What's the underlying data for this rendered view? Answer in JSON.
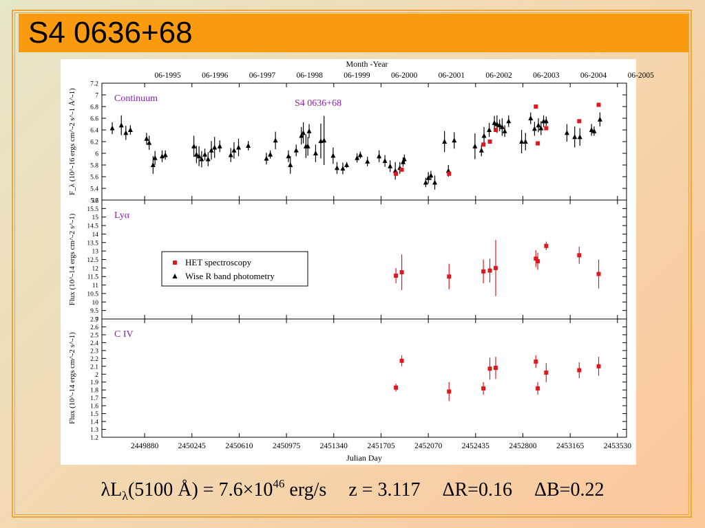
{
  "title": "S4 0636+68",
  "caption": {
    "lum_l": "λL",
    "lum_sub": "λ",
    "lum_mid": "(5100 Å) = 7.6×10",
    "lum_exp": "46",
    "lum_unit": " erg/s",
    "z": "z = 3.117",
    "dr": "ΔR=0.16",
    "db": "ΔB=0.22"
  },
  "chart_data": {
    "type": "scatter",
    "top_axis_title": "Month -Year",
    "top_ticks": [
      "06-1995",
      "06-1996",
      "06-1997",
      "06-1998",
      "06-1999",
      "06-2000",
      "06-2001",
      "06-2002",
      "06-2003",
      "06-2004",
      "06-2005"
    ],
    "xlabel": "Julian Day",
    "x_ticks": [
      "2449880",
      "2450245",
      "2450610",
      "2450975",
      "2451340",
      "2451705",
      "2452070",
      "2452435",
      "2452800",
      "2453165",
      "2453530"
    ],
    "xlim": [
      2449550,
      2453600
    ],
    "colors": {
      "het": "#e0181e",
      "wise": "#000000",
      "label": "#8b1fb4"
    },
    "legend": {
      "placement": "inside panel 2, left",
      "entries": [
        {
          "name": "HET spectroscopy",
          "series": "het",
          "marker": "square"
        },
        {
          "name": "Wise R band photometry",
          "series": "wise",
          "marker": "triangle"
        }
      ]
    },
    "panels": [
      {
        "label": "Continuum",
        "object": "S4 0636+68",
        "ylabel": "F_λ (10^-16 ergs cm^-2 s^-1 Å^-1)",
        "ylim": [
          5.2,
          7.2
        ],
        "y_ticks": [
          "5.2",
          "5.4",
          "5.6",
          "5.8",
          "6",
          "6.2",
          "6.4",
          "6.6",
          "6.8",
          "7",
          "7.2"
        ],
        "series": [
          {
            "name": "Wise R band photometry",
            "marker": "triangle",
            "points": [
              {
                "x": 2449630,
                "y": 6.43,
                "e": 0.1
              },
              {
                "x": 2449700,
                "y": 6.48,
                "e": 0.17
              },
              {
                "x": 2449735,
                "y": 6.35,
                "e": 0.12
              },
              {
                "x": 2449770,
                "y": 6.4,
                "e": 0.08
              },
              {
                "x": 2449895,
                "y": 6.25,
                "e": 0.1
              },
              {
                "x": 2449915,
                "y": 6.18,
                "e": 0.12
              },
              {
                "x": 2449945,
                "y": 5.8,
                "e": 0.15
              },
              {
                "x": 2449960,
                "y": 5.92,
                "e": 0.12
              },
              {
                "x": 2450015,
                "y": 5.95,
                "e": 0.1
              },
              {
                "x": 2450040,
                "y": 5.97,
                "e": 0.08
              },
              {
                "x": 2450260,
                "y": 6.12,
                "e": 0.18
              },
              {
                "x": 2450280,
                "y": 5.98,
                "e": 0.15
              },
              {
                "x": 2450300,
                "y": 5.95,
                "e": 0.17
              },
              {
                "x": 2450320,
                "y": 5.9,
                "e": 0.14
              },
              {
                "x": 2450345,
                "y": 5.98,
                "e": 0.1
              },
              {
                "x": 2450370,
                "y": 5.9,
                "e": 0.12
              },
              {
                "x": 2450395,
                "y": 6.05,
                "e": 0.16
              },
              {
                "x": 2450420,
                "y": 6.1,
                "e": 0.18
              },
              {
                "x": 2450460,
                "y": 6.12,
                "e": 0.1
              },
              {
                "x": 2450545,
                "y": 5.97,
                "e": 0.12
              },
              {
                "x": 2450570,
                "y": 6.05,
                "e": 0.14
              },
              {
                "x": 2450605,
                "y": 6.1,
                "e": 0.15
              },
              {
                "x": 2450680,
                "y": 6.13,
                "e": 0.08
              },
              {
                "x": 2450820,
                "y": 5.91,
                "e": 0.1
              },
              {
                "x": 2450850,
                "y": 5.98,
                "e": 0.07
              },
              {
                "x": 2450890,
                "y": 6.22,
                "e": 0.15
              },
              {
                "x": 2450990,
                "y": 5.95,
                "e": 0.1
              },
              {
                "x": 2451005,
                "y": 5.8,
                "e": 0.15
              },
              {
                "x": 2451050,
                "y": 6.05,
                "e": 0.1
              },
              {
                "x": 2451090,
                "y": 6.3,
                "e": 0.15
              },
              {
                "x": 2451105,
                "y": 6.35,
                "e": 0.18
              },
              {
                "x": 2451125,
                "y": 6.12,
                "e": 0.2
              },
              {
                "x": 2451140,
                "y": 6.12,
                "e": 0.16
              },
              {
                "x": 2451150,
                "y": 6.38,
                "e": 0.12
              },
              {
                "x": 2451200,
                "y": 6.0,
                "e": 0.15
              },
              {
                "x": 2451240,
                "y": 6.21,
                "e": 0.3
              },
              {
                "x": 2451265,
                "y": 6.22,
                "e": 0.42
              },
              {
                "x": 2451335,
                "y": 5.96,
                "e": 0.14
              },
              {
                "x": 2451365,
                "y": 5.75,
                "e": 0.1
              },
              {
                "x": 2451410,
                "y": 5.74,
                "e": 0.1
              },
              {
                "x": 2451440,
                "y": 5.8,
                "e": 0.05
              },
              {
                "x": 2451520,
                "y": 5.92,
                "e": 0.08
              },
              {
                "x": 2451545,
                "y": 5.97,
                "e": 0.06
              },
              {
                "x": 2451600,
                "y": 5.86,
                "e": 0.08
              },
              {
                "x": 2451690,
                "y": 5.95,
                "e": 0.1
              },
              {
                "x": 2451735,
                "y": 5.87,
                "e": 0.1
              },
              {
                "x": 2451775,
                "y": 5.78,
                "e": 0.1
              },
              {
                "x": 2451815,
                "y": 5.7,
                "e": 0.15
              },
              {
                "x": 2451850,
                "y": 5.75,
                "e": 0.1
              },
              {
                "x": 2451875,
                "y": 5.85,
                "e": 0.08
              },
              {
                "x": 2451885,
                "y": 5.9,
                "e": 0.08
              },
              {
                "x": 2452050,
                "y": 5.5,
                "e": 0.08
              },
              {
                "x": 2452070,
                "y": 5.58,
                "e": 0.1
              },
              {
                "x": 2452090,
                "y": 5.62,
                "e": 0.08
              },
              {
                "x": 2452120,
                "y": 5.5,
                "e": 0.12
              },
              {
                "x": 2452195,
                "y": 6.2,
                "e": 0.18
              },
              {
                "x": 2452225,
                "y": 5.7,
                "e": 0.1
              },
              {
                "x": 2452270,
                "y": 6.22,
                "e": 0.14
              },
              {
                "x": 2452430,
                "y": 6.12,
                "e": 0.22
              },
              {
                "x": 2452480,
                "y": 6.05,
                "e": 0.1
              },
              {
                "x": 2452500,
                "y": 6.3,
                "e": 0.15
              },
              {
                "x": 2452540,
                "y": 6.4,
                "e": 0.12
              },
              {
                "x": 2452580,
                "y": 6.52,
                "e": 0.12
              },
              {
                "x": 2452600,
                "y": 6.5,
                "e": 0.15
              },
              {
                "x": 2452620,
                "y": 6.48,
                "e": 0.1
              },
              {
                "x": 2452640,
                "y": 6.45,
                "e": 0.15
              },
              {
                "x": 2452660,
                "y": 6.38,
                "e": 0.1
              },
              {
                "x": 2452690,
                "y": 6.55,
                "e": 0.1
              },
              {
                "x": 2452790,
                "y": 6.2,
                "e": 0.2
              },
              {
                "x": 2452820,
                "y": 6.2,
                "e": 0.15
              },
              {
                "x": 2452860,
                "y": 6.6,
                "e": 0.1
              },
              {
                "x": 2452890,
                "y": 6.42,
                "e": 0.12
              },
              {
                "x": 2452920,
                "y": 6.48,
                "e": 0.12
              },
              {
                "x": 2452940,
                "y": 6.43,
                "e": 0.12
              },
              {
                "x": 2452960,
                "y": 6.55,
                "e": 0.1
              },
              {
                "x": 2452980,
                "y": 6.55,
                "e": 0.08
              },
              {
                "x": 2453140,
                "y": 6.35,
                "e": 0.15
              },
              {
                "x": 2453200,
                "y": 6.28,
                "e": 0.18
              },
              {
                "x": 2453240,
                "y": 6.28,
                "e": 0.15
              },
              {
                "x": 2453330,
                "y": 6.4,
                "e": 0.1
              },
              {
                "x": 2453350,
                "y": 6.38,
                "e": 0.08
              },
              {
                "x": 2453395,
                "y": 6.58,
                "e": 0.12
              }
            ]
          },
          {
            "name": "HET spectroscopy",
            "marker": "square",
            "points": [
              {
                "x": 2451820,
                "y": 5.65,
                "e": 0.03
              },
              {
                "x": 2451865,
                "y": 5.72,
                "e": 0.03
              },
              {
                "x": 2452230,
                "y": 5.65,
                "e": 0.03
              },
              {
                "x": 2452495,
                "y": 6.15,
                "e": 0.03
              },
              {
                "x": 2452545,
                "y": 6.2,
                "e": 0.03
              },
              {
                "x": 2452590,
                "y": 6.4,
                "e": 0.03
              },
              {
                "x": 2452900,
                "y": 6.8,
                "e": 0.03
              },
              {
                "x": 2452915,
                "y": 6.17,
                "e": 0.03
              },
              {
                "x": 2452980,
                "y": 6.43,
                "e": 0.03
              },
              {
                "x": 2453235,
                "y": 6.55,
                "e": 0.03
              },
              {
                "x": 2453385,
                "y": 6.83,
                "e": 0.03
              }
            ]
          }
        ]
      },
      {
        "label": "Lyα",
        "ylabel": "Flux (10^-14 ergs cm^-2 s^-1)",
        "ylim": [
          9,
          16
        ],
        "y_ticks": [
          "9",
          "9.5",
          "10",
          "10.5",
          "11",
          "11.5",
          "12",
          "12.5",
          "13",
          "13.5",
          "14",
          "14.5",
          "15",
          "15.5",
          "16"
        ],
        "series": [
          {
            "name": "HET spectroscopy",
            "marker": "square",
            "points": [
              {
                "x": 2451820,
                "y": 11.55,
                "e": 0.45
              },
              {
                "x": 2451865,
                "y": 11.75,
                "e": 1.05
              },
              {
                "x": 2452230,
                "y": 11.5,
                "e": 0.75
              },
              {
                "x": 2452495,
                "y": 11.8,
                "e": 0.7
              },
              {
                "x": 2452545,
                "y": 11.85,
                "e": 0.7
              },
              {
                "x": 2452590,
                "y": 12.0,
                "e": 1.65
              },
              {
                "x": 2452900,
                "y": 12.55,
                "e": 0.5
              },
              {
                "x": 2452915,
                "y": 12.4,
                "e": 0.5
              },
              {
                "x": 2452980,
                "y": 13.3,
                "e": 0.25
              },
              {
                "x": 2453235,
                "y": 12.75,
                "e": 0.5
              },
              {
                "x": 2453385,
                "y": 11.65,
                "e": 0.85
              }
            ]
          }
        ]
      },
      {
        "label": "C IV",
        "ylabel": "Flux (10^-14 ergs cm^-2 s^-1)",
        "ylim": [
          1.2,
          2.7
        ],
        "y_ticks": [
          "1.2",
          "1.3",
          "1.4",
          "1.5",
          "1.6",
          "1.7",
          "1.8",
          "1.9",
          "2",
          "2.1",
          "2.2",
          "2.3",
          "2.4",
          "2.5",
          "2.6",
          "2.7"
        ],
        "series": [
          {
            "name": "HET spectroscopy",
            "marker": "square",
            "points": [
              {
                "x": 2451820,
                "y": 1.83,
                "e": 0.05
              },
              {
                "x": 2451865,
                "y": 2.17,
                "e": 0.07
              },
              {
                "x": 2452230,
                "y": 1.78,
                "e": 0.12
              },
              {
                "x": 2452495,
                "y": 1.82,
                "e": 0.08
              },
              {
                "x": 2452545,
                "y": 2.07,
                "e": 0.14
              },
              {
                "x": 2452590,
                "y": 2.08,
                "e": 0.14
              },
              {
                "x": 2452900,
                "y": 2.16,
                "e": 0.08
              },
              {
                "x": 2452915,
                "y": 1.82,
                "e": 0.08
              },
              {
                "x": 2452980,
                "y": 2.02,
                "e": 0.12
              },
              {
                "x": 2453235,
                "y": 2.05,
                "e": 0.1
              },
              {
                "x": 2453385,
                "y": 2.1,
                "e": 0.12
              }
            ]
          }
        ]
      }
    ]
  }
}
